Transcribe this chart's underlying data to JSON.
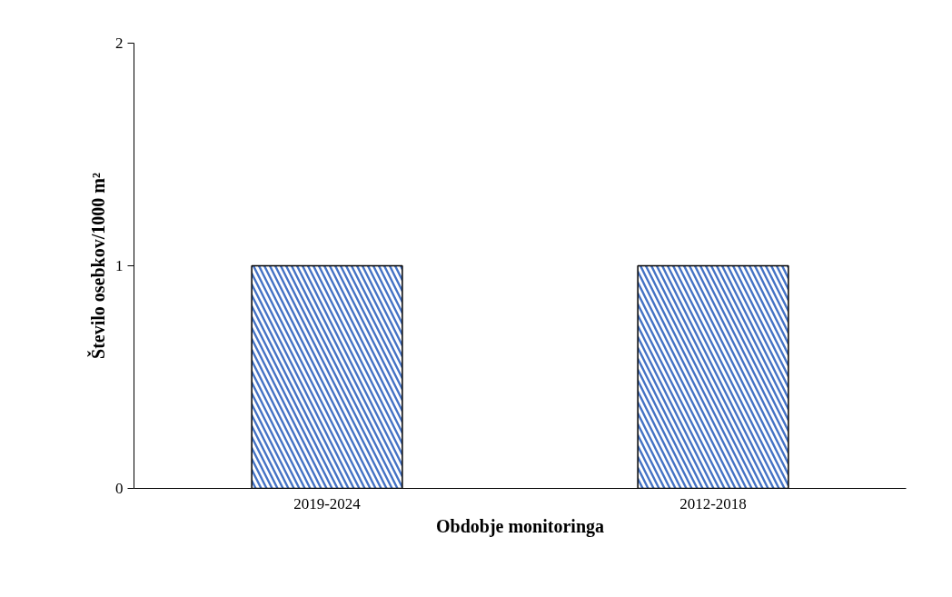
{
  "chart_data": {
    "type": "bar",
    "categories": [
      "2019-2024",
      "2012-2018"
    ],
    "values": [
      1,
      1
    ],
    "color": "#4472c4",
    "xlabel": "Obdobje monitoringa",
    "ylabel": "Število osebkov/1000 m²",
    "ylim": [
      0,
      2
    ],
    "yticks": [
      0,
      1,
      2
    ],
    "grid": false
  }
}
